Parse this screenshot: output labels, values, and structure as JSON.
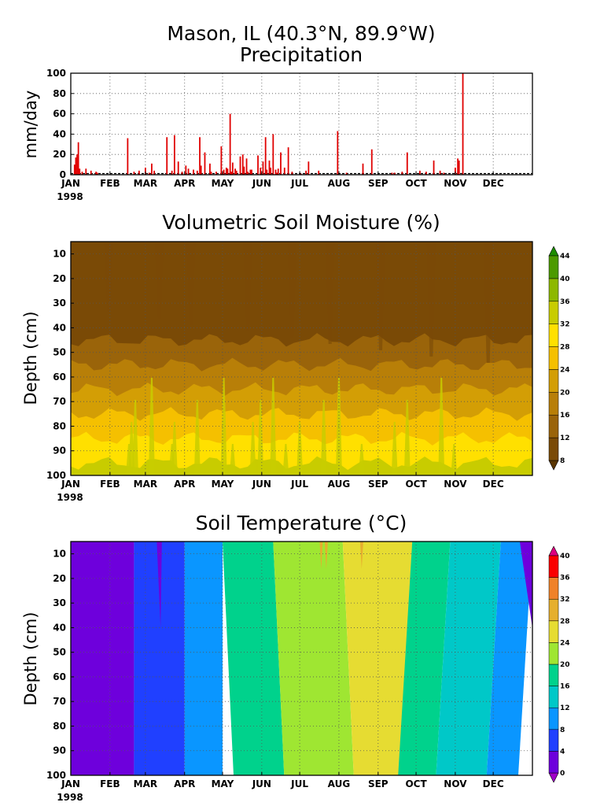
{
  "figure": {
    "title_line1": "Mason, IL  (40.3°N, 89.9°W)",
    "title_line2": "Precipitation"
  },
  "chart_data": [
    {
      "type": "bar",
      "title": "Precipitation",
      "ylabel": "mm/day",
      "xlabel": "",
      "year_label": "1998",
      "month_labels": [
        "JAN",
        "FEB",
        "MAR",
        "APR",
        "MAY",
        "JUN",
        "JUL",
        "AUG",
        "SEP",
        "OCT",
        "NOV",
        "DEC"
      ],
      "ylim": [
        0,
        100
      ],
      "yticks": [
        0,
        20,
        40,
        60,
        80,
        100
      ],
      "grid": true,
      "bar_color": "#e00000",
      "days": [
        3,
        4,
        5,
        6,
        7,
        9,
        12,
        16,
        20,
        21,
        45,
        50,
        54,
        59,
        62,
        64,
        66,
        76,
        80,
        82,
        85,
        88,
        91,
        93,
        97,
        100,
        102,
        103,
        106,
        110,
        111,
        115,
        119,
        121,
        123,
        124,
        126,
        127,
        128,
        130,
        131,
        134,
        136,
        137,
        139,
        140,
        142,
        143,
        148,
        150,
        152,
        154,
        155,
        157,
        158,
        160,
        162,
        163,
        164,
        166,
        169,
        172,
        175,
        182,
        186,
        188,
        196,
        211,
        218,
        231,
        238,
        254,
        256,
        262,
        266,
        276,
        281,
        287,
        292,
        295,
        304,
        306,
        307,
        310
      ],
      "values": [
        10,
        17,
        20,
        32,
        6,
        3,
        6,
        4,
        3,
        2,
        36,
        3,
        4,
        7,
        2,
        11,
        4,
        37,
        4,
        39,
        13,
        3,
        9,
        6,
        5,
        4,
        37,
        9,
        22,
        11,
        3,
        3,
        28,
        5,
        7,
        6,
        60,
        3,
        12,
        6,
        4,
        18,
        20,
        8,
        16,
        3,
        5,
        5,
        19,
        7,
        13,
        37,
        5,
        14,
        7,
        40,
        5,
        2,
        6,
        22,
        7,
        27,
        3,
        1,
        4,
        13,
        4,
        43,
        2,
        11,
        25,
        2,
        2,
        3,
        22,
        4,
        3,
        14,
        4,
        2,
        7,
        16,
        14,
        100
      ]
    },
    {
      "type": "heatmap",
      "title": "Volumetric Soil Moisture (%)",
      "xlabel": "",
      "ylabel": "Depth (cm)",
      "year_label": "1998",
      "month_labels": [
        "JAN",
        "FEB",
        "MAR",
        "APR",
        "MAY",
        "JUN",
        "JUL",
        "AUG",
        "SEP",
        "OCT",
        "NOV",
        "DEC"
      ],
      "y_ticks": [
        10,
        20,
        30,
        40,
        50,
        60,
        70,
        80,
        90,
        100
      ],
      "ylim": [
        5,
        100
      ],
      "grid": true,
      "colorbar_levels": [
        8,
        12,
        16,
        20,
        24,
        28,
        32,
        36,
        40,
        44
      ],
      "colorbar_colors": [
        "#5a3502",
        "#7a4a06",
        "#9a640a",
        "#b87f08",
        "#d39e05",
        "#f5c000",
        "#ffe000",
        "#c8cc00",
        "#8db800",
        "#4c9a00",
        "#1e8c00"
      ],
      "depth_rows": [
        {
          "from": 5,
          "to": 45,
          "value": 10
        },
        {
          "from": 45,
          "to": 55,
          "value": 14
        },
        {
          "from": 55,
          "to": 65,
          "value": 18
        },
        {
          "from": 65,
          "to": 75,
          "value": 22
        },
        {
          "from": 75,
          "to": 85,
          "value": 26
        },
        {
          "from": 85,
          "to": 95,
          "value": 30
        },
        {
          "from": 95,
          "to": 100,
          "value": 34
        }
      ]
    },
    {
      "type": "heatmap",
      "title": "Soil Temperature (°C)",
      "xlabel": "",
      "ylabel": "Depth (cm)",
      "year_label": "1998",
      "month_labels": [
        "JAN",
        "FEB",
        "MAR",
        "APR",
        "MAY",
        "JUN",
        "JUL",
        "AUG",
        "SEP",
        "OCT",
        "NOV",
        "DEC"
      ],
      "y_ticks": [
        10,
        20,
        30,
        40,
        50,
        60,
        70,
        80,
        90,
        100
      ],
      "ylim": [
        5,
        100
      ],
      "grid": true,
      "colorbar_levels": [
        0,
        4,
        8,
        12,
        16,
        20,
        24,
        28,
        32,
        36,
        40
      ],
      "colorbar_colors": [
        "#a000c8",
        "#6e00dc",
        "#2040ff",
        "#0a96ff",
        "#00c8c8",
        "#00d28c",
        "#9fe632",
        "#e6dc32",
        "#e6af2d",
        "#f08228",
        "#fa0000",
        "#dc0080"
      ],
      "time_bands": [
        {
          "from_day": 0,
          "to_day": 50,
          "value": 2
        },
        {
          "from_day": 50,
          "to_day": 90,
          "value": 6
        },
        {
          "from_day": 90,
          "to_day": 120,
          "value": 10
        },
        {
          "from_day": 120,
          "to_day": 160,
          "value": 18
        },
        {
          "from_day": 160,
          "to_day": 215,
          "value": 22
        },
        {
          "from_day": 215,
          "to_day": 270,
          "value": 26
        },
        {
          "from_day": 270,
          "to_day": 300,
          "value": 18
        },
        {
          "from_day": 300,
          "to_day": 340,
          "value": 14
        },
        {
          "from_day": 340,
          "to_day": 365,
          "value": 10
        }
      ]
    }
  ]
}
